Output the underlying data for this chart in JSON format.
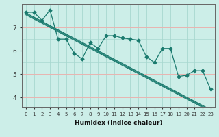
{
  "xlabel": "Humidex (Indice chaleur)",
  "bg_color": "#cceee8",
  "grid_color_v": "#a8d8d0",
  "grid_color_h_pink": "#e8b4b0",
  "grid_color_h_teal": "#a8d8d0",
  "line_color": "#1a7a6e",
  "x_data": [
    0,
    1,
    2,
    3,
    4,
    5,
    6,
    7,
    8,
    9,
    10,
    11,
    12,
    13,
    14,
    15,
    16,
    17,
    18,
    19,
    20,
    21,
    22,
    23
  ],
  "y_zigzag": [
    7.65,
    7.65,
    7.3,
    7.75,
    6.5,
    6.5,
    5.9,
    5.65,
    6.35,
    6.1,
    6.65,
    6.65,
    6.55,
    6.5,
    6.45,
    5.75,
    5.5,
    6.1,
    6.1,
    4.9,
    4.95,
    5.15,
    5.15,
    4.35
  ],
  "y_line1": [
    7.62,
    7.44,
    7.26,
    7.08,
    6.9,
    6.72,
    6.54,
    6.36,
    6.18,
    6.0,
    5.82,
    5.64,
    5.46,
    5.28,
    5.1,
    4.92,
    4.74,
    4.56,
    4.38,
    4.2,
    4.02,
    3.84,
    3.66,
    3.48
  ],
  "y_line2": [
    7.58,
    7.4,
    7.22,
    7.04,
    6.86,
    6.68,
    6.5,
    6.32,
    6.14,
    5.96,
    5.78,
    5.6,
    5.42,
    5.24,
    5.06,
    4.88,
    4.7,
    4.52,
    4.34,
    4.16,
    3.98,
    3.8,
    3.62,
    3.44
  ],
  "y_line3": [
    7.54,
    7.36,
    7.18,
    7.0,
    6.82,
    6.64,
    6.46,
    6.28,
    6.1,
    5.92,
    5.74,
    5.56,
    5.38,
    5.2,
    5.02,
    4.84,
    4.66,
    4.48,
    4.3,
    4.12,
    3.94,
    3.76,
    3.58,
    3.4
  ],
  "ylim": [
    3.6,
    8.0
  ],
  "xlim": [
    -0.5,
    23.5
  ],
  "yticks": [
    4,
    5,
    6,
    7
  ],
  "xticks": [
    0,
    1,
    2,
    3,
    4,
    5,
    6,
    7,
    8,
    9,
    10,
    11,
    12,
    13,
    14,
    15,
    16,
    17,
    18,
    19,
    20,
    21,
    22,
    23
  ]
}
